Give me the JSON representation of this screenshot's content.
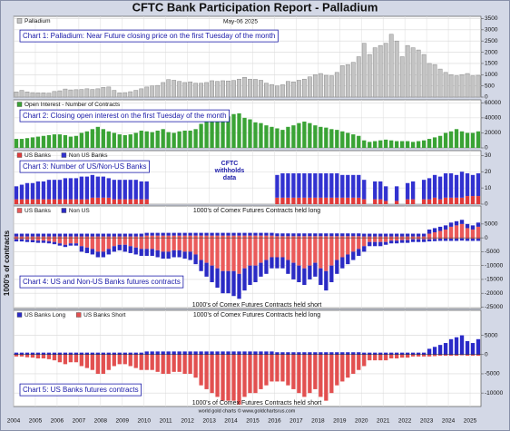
{
  "title": "CFTC Bank Participation Report - Palladium",
  "ylabel": "1000's of contracts",
  "chart_data": [
    {
      "type": "bar",
      "title": "Chart 1: Palladium: Near Future closing price on the first Tuesday of the month",
      "date": "May-06 2025",
      "ylim": [
        0,
        3600
      ],
      "yticks": [
        0,
        500,
        1000,
        1500,
        2000,
        2500,
        3000,
        3500
      ],
      "grid": true,
      "series": [
        {
          "name": "Palladium",
          "color": "#c4c4c4",
          "values": [
            230,
            300,
            230,
            200,
            190,
            190,
            180,
            250,
            280,
            360,
            320,
            330,
            340,
            370,
            340,
            370,
            430,
            450,
            300,
            190,
            200,
            240,
            300,
            370,
            450,
            500,
            520,
            650,
            780,
            750,
            700,
            650,
            680,
            620,
            620,
            650,
            730,
            700,
            730,
            720,
            740,
            800,
            880,
            800,
            790,
            750,
            620,
            560,
            500,
            550,
            700,
            680,
            750,
            800,
            900,
            1000,
            1050,
            970,
            950,
            1100,
            1400,
            1450,
            1550,
            1800,
            2400,
            1900,
            2200,
            2300,
            2400,
            2800,
            2500,
            1800,
            2300,
            2200,
            2100,
            1900,
            1500,
            1450,
            1250,
            1100,
            1000,
            950,
            1000,
            1050,
            950,
            970
          ]
        }
      ]
    },
    {
      "type": "bar",
      "title": "Chart 2: Closing open interest on the first Tuesday of the month",
      "ylim": [
        0,
        64000
      ],
      "yticks": [
        0,
        20000,
        40000,
        60000
      ],
      "grid": true,
      "series": [
        {
          "name": "Open Interest - Number of Contracts",
          "color": "#3aa335",
          "values": [
            12000,
            12000,
            13000,
            14000,
            15000,
            16000,
            17000,
            18000,
            18000,
            17000,
            15000,
            16000,
            20000,
            22000,
            25000,
            28000,
            25000,
            22000,
            20000,
            18000,
            17000,
            18000,
            20000,
            23000,
            22000,
            21000,
            23000,
            25000,
            21000,
            20000,
            22000,
            23000,
            23000,
            25000,
            32000,
            36000,
            35000,
            37000,
            41000,
            42000,
            45000,
            46000,
            40000,
            38000,
            34000,
            33000,
            30000,
            28000,
            26000,
            24000,
            28000,
            30000,
            33000,
            35000,
            33000,
            30000,
            28000,
            27000,
            25000,
            24000,
            22000,
            20000,
            18000,
            16000,
            10000,
            8000,
            9000,
            10000,
            11000,
            10000,
            9000,
            9000,
            9000,
            8000,
            9000,
            10000,
            12000,
            14000,
            16000,
            20000,
            22000,
            25000,
            22000,
            20000,
            20000,
            22000
          ]
        }
      ]
    },
    {
      "type": "bar",
      "stacked": true,
      "title": "Chart 3: Number of US/Non-US Banks",
      "annotation": [
        "CFTC",
        "withholds",
        "data"
      ],
      "ylim": [
        0,
        33
      ],
      "yticks": [
        0,
        10,
        20,
        30
      ],
      "grid": true,
      "series": [
        {
          "name": "US Banks",
          "color": "#e03a3a",
          "values": [
            3,
            3,
            3,
            3,
            3,
            3,
            3,
            3,
            3,
            3,
            3,
            3,
            3,
            3,
            4,
            4,
            4,
            4,
            3,
            3,
            3,
            3,
            3,
            3,
            3,
            null,
            null,
            null,
            null,
            null,
            null,
            null,
            null,
            null,
            null,
            null,
            null,
            null,
            null,
            null,
            null,
            null,
            null,
            null,
            null,
            null,
            null,
            null,
            4,
            4,
            4,
            4,
            4,
            4,
            4,
            4,
            4,
            4,
            4,
            4,
            4,
            4,
            4,
            4,
            3,
            null,
            3,
            3,
            2,
            null,
            2,
            null,
            3,
            3,
            null,
            3,
            3,
            4,
            3,
            4,
            4,
            4,
            4,
            5,
            5,
            5
          ]
        },
        {
          "name": "Non US Banks",
          "color": "#3232d0",
          "values": [
            8,
            9,
            10,
            10,
            11,
            11,
            12,
            12,
            12,
            13,
            13,
            13,
            14,
            14,
            14,
            13,
            13,
            12,
            12,
            12,
            12,
            12,
            12,
            11,
            11,
            null,
            null,
            null,
            null,
            null,
            null,
            null,
            null,
            null,
            null,
            null,
            null,
            null,
            null,
            null,
            null,
            null,
            null,
            null,
            null,
            null,
            null,
            null,
            14,
            15,
            15,
            15,
            15,
            15,
            15,
            15,
            15,
            15,
            15,
            15,
            14,
            14,
            14,
            14,
            12,
            null,
            11,
            11,
            9,
            null,
            9,
            null,
            10,
            11,
            null,
            12,
            13,
            14,
            14,
            15,
            15,
            14,
            16,
            14,
            13,
            14
          ]
        }
      ]
    },
    {
      "type": "bar",
      "stacked": true,
      "title": "Chart 4: US and Non-US Banks futures contracts",
      "top_note": "1000's of Comex Futures Contracts held long",
      "bottom_note": "1000's of Comex Futures Contracts held short",
      "ylim": [
        -25500,
        11500
      ],
      "yticks": [
        -25000,
        -20000,
        -15000,
        -10000,
        -5000,
        0,
        5000
      ],
      "grid": true,
      "series": [
        {
          "name": "US Banks",
          "color": "#ea5a5a",
          "values": [
            500,
            500,
            500,
            500,
            500,
            500,
            500,
            500,
            500,
            500,
            500,
            500,
            500,
            500,
            500,
            500,
            500,
            500,
            500,
            500,
            500,
            500,
            500,
            500,
            800,
            800,
            800,
            800,
            800,
            800,
            800,
            800,
            800,
            800,
            800,
            800,
            800,
            800,
            800,
            800,
            800,
            800,
            800,
            800,
            800,
            800,
            800,
            800,
            600,
            600,
            600,
            600,
            600,
            600,
            600,
            600,
            600,
            600,
            600,
            600,
            600,
            600,
            600,
            600,
            500,
            500,
            500,
            500,
            500,
            500,
            500,
            500,
            500,
            500,
            500,
            500,
            1500,
            2000,
            2500,
            3000,
            4000,
            4500,
            5000,
            3500,
            3000,
            4000
          ]
        },
        {
          "name": "Non US",
          "color": "#2a2ac4",
          "values": [
            1000,
            1000,
            1000,
            1000,
            1000,
            1000,
            1000,
            1000,
            1000,
            1000,
            1000,
            1000,
            1000,
            1000,
            1000,
            1000,
            1000,
            1000,
            1000,
            1000,
            1000,
            1000,
            1000,
            1000,
            1000,
            1000,
            1000,
            1000,
            1000,
            1000,
            1000,
            1000,
            1000,
            1000,
            1000,
            1000,
            1000,
            1000,
            1000,
            1000,
            1000,
            1000,
            1000,
            1000,
            1000,
            1000,
            1000,
            1000,
            1000,
            1000,
            1000,
            1000,
            1000,
            1000,
            1000,
            1000,
            1000,
            1000,
            1000,
            1000,
            1000,
            1000,
            1000,
            1000,
            1000,
            1000,
            1000,
            1000,
            1000,
            1000,
            1000,
            1000,
            1000,
            1000,
            1000,
            1000,
            1500,
            1500,
            1500,
            1500,
            1500,
            1500,
            1500,
            1500,
            1500,
            1500
          ]
        },
        {
          "name": "US Banks",
          "color": "#ea5a5a",
          "legend": false,
          "values": [
            -500,
            -500,
            -700,
            -800,
            -1000,
            -1000,
            -1200,
            -1500,
            -2000,
            -2500,
            -2000,
            -2000,
            -3000,
            -3500,
            -4000,
            -5000,
            -5000,
            -4000,
            -3000,
            -2500,
            -2500,
            -3000,
            -3500,
            -4000,
            -4000,
            -4000,
            -4500,
            -5000,
            -5000,
            -4500,
            -4500,
            -5000,
            -5000,
            -6000,
            -8000,
            -9000,
            -10000,
            -11000,
            -12000,
            -12000,
            -12000,
            -13000,
            -11000,
            -10000,
            -10000,
            -9000,
            -8000,
            -7000,
            -7000,
            -7000,
            -8000,
            -9000,
            -10000,
            -11000,
            -10000,
            -9000,
            -11000,
            -12000,
            -10000,
            -8000,
            -7000,
            -6000,
            -5000,
            -4000,
            -3000,
            -1500,
            -1500,
            -1500,
            -1500,
            -1000,
            -1000,
            -800,
            -800,
            -500,
            -500,
            -500,
            -500,
            -400,
            -300,
            -300,
            -300,
            -300,
            -200,
            -300,
            -300,
            -300
          ]
        },
        {
          "name": "Non US",
          "color": "#2a2ac4",
          "legend": false,
          "values": [
            -800,
            -800,
            -800,
            -800,
            -800,
            -800,
            -800,
            -800,
            -800,
            -800,
            -800,
            -800,
            -2000,
            -2000,
            -2000,
            -2000,
            -2000,
            -2000,
            -2000,
            -2000,
            -2500,
            -2500,
            -2500,
            -2500,
            -2500,
            -2500,
            -2500,
            -2500,
            -2500,
            -2500,
            -2500,
            -2500,
            -3000,
            -3500,
            -4000,
            -5000,
            -6000,
            -7000,
            -8000,
            -8000,
            -9000,
            -9000,
            -8000,
            -7000,
            -6000,
            -5000,
            -5000,
            -4000,
            -4000,
            -4000,
            -5000,
            -6000,
            -6000,
            -6000,
            -5000,
            -5000,
            -6000,
            -7000,
            -6000,
            -5000,
            -4000,
            -3500,
            -3000,
            -2500,
            -2000,
            -1500,
            -1500,
            -1500,
            -1000,
            -1000,
            -1000,
            -1000,
            -1000,
            -1000,
            -1000,
            -1000,
            -800,
            -800,
            -800,
            -800,
            -800,
            -800,
            -800,
            -800,
            -800,
            -800
          ]
        }
      ]
    },
    {
      "type": "bar",
      "stacked": true,
      "title": "Chart 5: US Banks futures contracts",
      "top_note": "1000's of Comex Futures Contracts held long",
      "bottom_note": "1000's of Comex Futures Contracts held short",
      "credit": "world gold charts © www.goldchartsrus.com",
      "ylim": [
        -13500,
        11500
      ],
      "yticks": [
        -10000,
        -5000,
        0,
        5000
      ],
      "grid": true,
      "categories": [
        "2004",
        null,
        null,
        null,
        "2005",
        null,
        null,
        null,
        "2006",
        null,
        null,
        null,
        "2007",
        null,
        null,
        null,
        "2008",
        null,
        null,
        null,
        "2009",
        null,
        null,
        null,
        "2010",
        null,
        null,
        null,
        "2011",
        null,
        null,
        null,
        "2012",
        null,
        null,
        null,
        "2013",
        null,
        null,
        null,
        "2014",
        null,
        null,
        null,
        "2015",
        null,
        null,
        null,
        "2016",
        null,
        null,
        null,
        "2017",
        null,
        null,
        null,
        "2018",
        null,
        null,
        null,
        "2019",
        null,
        null,
        null,
        "2020",
        null,
        null,
        null,
        "2021",
        null,
        null,
        null,
        "2022",
        null,
        null,
        null,
        "2023",
        null,
        null,
        null,
        "2024",
        null,
        null,
        null,
        "2025",
        null
      ],
      "series": [
        {
          "name": "US Banks Long",
          "color": "#2a2ac8",
          "values": [
            500,
            500,
            500,
            500,
            500,
            500,
            500,
            500,
            500,
            500,
            500,
            500,
            500,
            500,
            500,
            500,
            500,
            500,
            500,
            500,
            500,
            500,
            500,
            500,
            800,
            800,
            800,
            800,
            800,
            800,
            800,
            800,
            800,
            800,
            800,
            800,
            800,
            800,
            800,
            800,
            800,
            800,
            800,
            800,
            800,
            800,
            800,
            800,
            600,
            600,
            600,
            600,
            600,
            600,
            600,
            600,
            600,
            600,
            600,
            600,
            600,
            600,
            600,
            600,
            500,
            500,
            500,
            500,
            500,
            500,
            500,
            500,
            500,
            500,
            500,
            500,
            1500,
            2000,
            2500,
            3000,
            4000,
            4500,
            5000,
            3500,
            3000,
            4000
          ]
        },
        {
          "name": "US Banks Short",
          "color": "#e25050",
          "values": [
            -500,
            -500,
            -700,
            -800,
            -1000,
            -1000,
            -1200,
            -1500,
            -2000,
            -2500,
            -2000,
            -2000,
            -3000,
            -3500,
            -4000,
            -5000,
            -5000,
            -4000,
            -3000,
            -2500,
            -2500,
            -3000,
            -3500,
            -4000,
            -4000,
            -4000,
            -4500,
            -5000,
            -5000,
            -4500,
            -4500,
            -5000,
            -5000,
            -6000,
            -8000,
            -9000,
            -10000,
            -11000,
            -12000,
            -12000,
            -12000,
            -13000,
            -11000,
            -10000,
            -10000,
            -9000,
            -8000,
            -7000,
            -7000,
            -7000,
            -8000,
            -9000,
            -10000,
            -11000,
            -10000,
            -9000,
            -11000,
            -12000,
            -10000,
            -8000,
            -7000,
            -6000,
            -5000,
            -4000,
            -3000,
            -1500,
            -1500,
            -1500,
            -1500,
            -1000,
            -1000,
            -800,
            -800,
            -500,
            -500,
            -500,
            -500,
            -400,
            -300,
            -300,
            -300,
            -300,
            -200,
            -300,
            -300,
            -300
          ]
        }
      ]
    }
  ]
}
